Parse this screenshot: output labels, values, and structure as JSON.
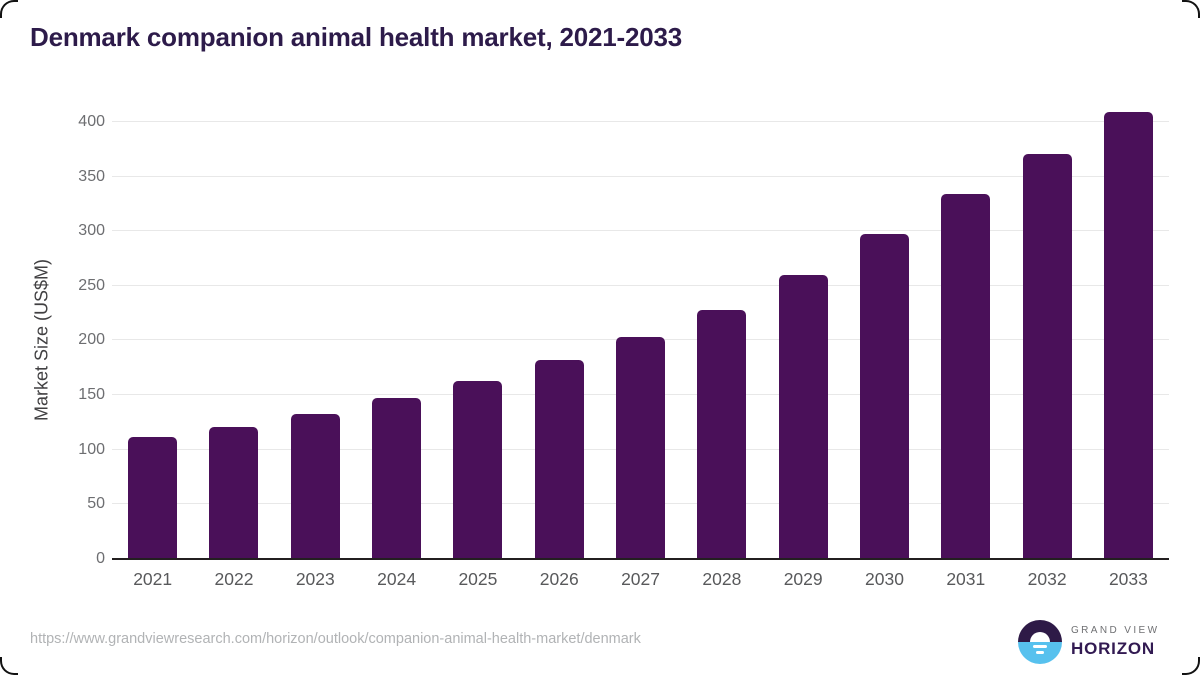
{
  "header": {
    "title": "Denmark companion animal health market, 2021-2033"
  },
  "chart_data": {
    "type": "bar",
    "title": "Denmark companion animal health market, 2021-2033",
    "categories": [
      "2021",
      "2022",
      "2023",
      "2024",
      "2025",
      "2026",
      "2027",
      "2028",
      "2029",
      "2030",
      "2031",
      "2032",
      "2033"
    ],
    "values": [
      112,
      121,
      133,
      147,
      163,
      182,
      203,
      228,
      260,
      297,
      334,
      371,
      409
    ],
    "xlabel": "",
    "ylabel": "Market Size (US$M)",
    "ylim": [
      0,
      400
    ],
    "yticks": [
      0,
      50,
      100,
      150,
      200,
      250,
      300,
      350,
      400
    ],
    "grid": true,
    "legend": "none",
    "bar_color": "#4a1059"
  },
  "footer": {
    "source_url": "https://www.grandviewresearch.com/horizon/outlook/companion-animal-health-market/denmark",
    "logo": {
      "line1": "GRAND VIEW",
      "line2": "HORIZON"
    }
  },
  "colors": {
    "title": "#2d1b4a",
    "bar": "#4a1059",
    "gridline": "#e8e8e8",
    "axis_line": "#231f20",
    "tick_label": "#6d6e71",
    "x_label": "#58595b",
    "url_text": "#b1b3b5",
    "logo_purple": "#2e1a47",
    "logo_blue": "#57c1ee"
  }
}
